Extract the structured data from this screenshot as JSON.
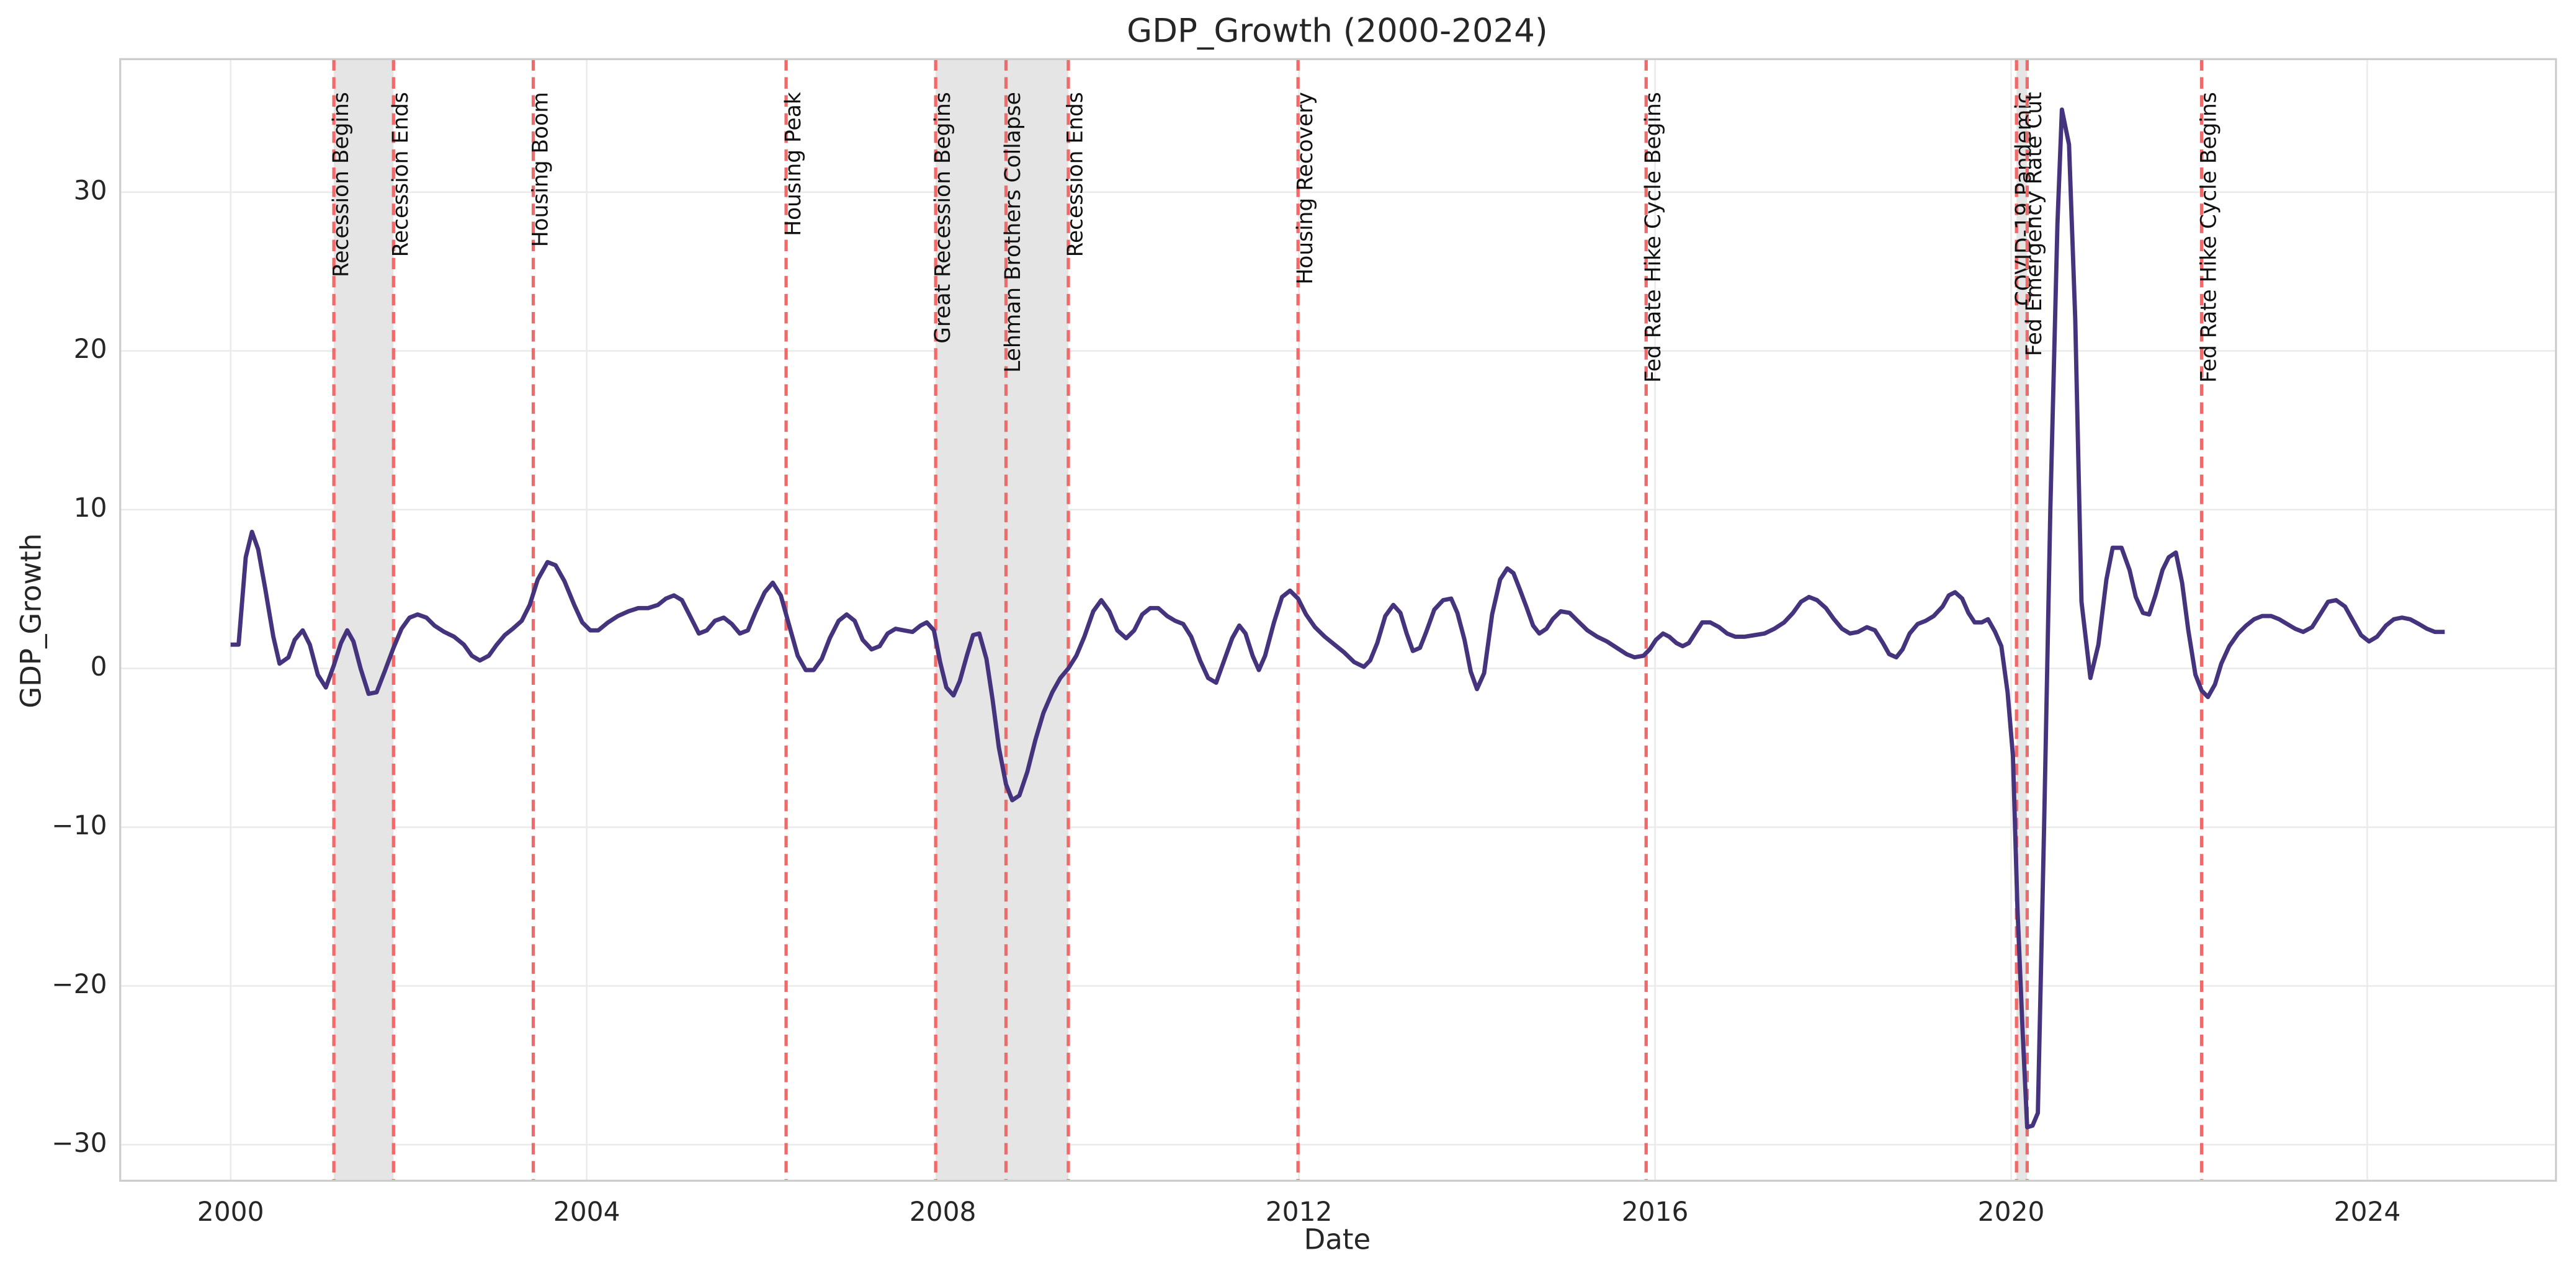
{
  "chart_data": {
    "type": "line",
    "title": "GDP_Growth (2000-2024)",
    "xlabel": "Date",
    "ylabel": "GDP_Growth",
    "xlim": [
      1998.76,
      2026.12
    ],
    "ylim": [
      -32.27,
      38.38
    ],
    "xticks": [
      2000,
      2004,
      2008,
      2012,
      2016,
      2020,
      2024
    ],
    "yticks": [
      {
        "value": -30,
        "label": "−30"
      },
      {
        "value": -20,
        "label": "−20"
      },
      {
        "value": -10,
        "label": "−10"
      },
      0,
      10,
      20,
      30
    ],
    "grid": true,
    "x": [
      2000.0,
      2000.09,
      2000.17,
      2000.24,
      2000.31,
      2000.39,
      2000.48,
      2000.55,
      2000.65,
      2000.72,
      2000.81,
      2000.89,
      2000.98,
      2001.07,
      2001.16,
      2001.24,
      2001.31,
      2001.38,
      2001.46,
      2001.55,
      2001.64,
      2001.73,
      2001.83,
      2001.92,
      2002.01,
      2002.1,
      2002.2,
      2002.29,
      2002.4,
      2002.51,
      2002.62,
      2002.71,
      2002.8,
      2002.9,
      2002.99,
      2003.08,
      2003.17,
      2003.27,
      2003.36,
      2003.45,
      2003.56,
      2003.65,
      2003.75,
      2003.86,
      2003.95,
      2004.04,
      2004.13,
      2004.24,
      2004.35,
      2004.47,
      2004.58,
      2004.69,
      2004.8,
      2004.89,
      2004.98,
      2005.07,
      2005.17,
      2005.26,
      2005.35,
      2005.44,
      2005.54,
      2005.63,
      2005.72,
      2005.81,
      2005.9,
      2006.0,
      2006.09,
      2006.18,
      2006.27,
      2006.37,
      2006.46,
      2006.55,
      2006.64,
      2006.73,
      2006.83,
      2006.92,
      2007.01,
      2007.1,
      2007.2,
      2007.29,
      2007.38,
      2007.47,
      2007.56,
      2007.66,
      2007.75,
      2007.82,
      2007.9,
      2007.97,
      2008.04,
      2008.12,
      2008.19,
      2008.27,
      2008.34,
      2008.41,
      2008.49,
      2008.56,
      2008.63,
      2008.71,
      2008.78,
      2008.86,
      2008.95,
      2009.04,
      2009.13,
      2009.23,
      2009.32,
      2009.41,
      2009.5,
      2009.59,
      2009.69,
      2009.78,
      2009.87,
      2009.96,
      2010.06,
      2010.15,
      2010.24,
      2010.33,
      2010.42,
      2010.52,
      2010.61,
      2010.7,
      2010.79,
      2010.89,
      2010.98,
      2011.07,
      2011.16,
      2011.25,
      2011.33,
      2011.4,
      2011.48,
      2011.55,
      2011.62,
      2011.72,
      2011.81,
      2011.9,
      2011.99,
      2012.08,
      2012.18,
      2012.29,
      2012.4,
      2012.51,
      2012.62,
      2012.73,
      2012.8,
      2012.88,
      2012.97,
      2013.06,
      2013.14,
      2013.21,
      2013.28,
      2013.36,
      2013.43,
      2013.52,
      2013.62,
      2013.71,
      2013.78,
      2013.86,
      2013.93,
      2014.0,
      2014.08,
      2014.17,
      2014.26,
      2014.34,
      2014.41,
      2014.48,
      2014.56,
      2014.63,
      2014.7,
      2014.78,
      2014.85,
      2014.94,
      2015.04,
      2015.13,
      2015.24,
      2015.35,
      2015.46,
      2015.57,
      2015.68,
      2015.77,
      2015.87,
      2015.94,
      2016.01,
      2016.09,
      2016.16,
      2016.24,
      2016.31,
      2016.38,
      2016.46,
      2016.53,
      2016.62,
      2016.72,
      2016.81,
      2016.9,
      2017.01,
      2017.12,
      2017.23,
      2017.34,
      2017.45,
      2017.55,
      2017.64,
      2017.73,
      2017.82,
      2017.92,
      2018.01,
      2018.1,
      2018.19,
      2018.28,
      2018.38,
      2018.47,
      2018.56,
      2018.63,
      2018.71,
      2018.78,
      2018.86,
      2018.95,
      2019.04,
      2019.13,
      2019.23,
      2019.3,
      2019.37,
      2019.45,
      2019.52,
      2019.59,
      2019.67,
      2019.74,
      2019.82,
      2019.89,
      2019.96,
      2020.02,
      2020.07,
      2020.13,
      2020.18,
      2020.24,
      2020.3,
      2020.37,
      2020.44,
      2020.52,
      2020.57,
      2020.65,
      2020.72,
      2020.79,
      2020.89,
      2020.98,
      2021.07,
      2021.14,
      2021.24,
      2021.33,
      2021.4,
      2021.48,
      2021.55,
      2021.62,
      2021.7,
      2021.77,
      2021.85,
      2021.92,
      2021.99,
      2022.07,
      2022.14,
      2022.21,
      2022.29,
      2022.36,
      2022.45,
      2022.55,
      2022.64,
      2022.73,
      2022.82,
      2022.92,
      2023.01,
      2023.1,
      2023.19,
      2023.28,
      2023.38,
      2023.47,
      2023.56,
      2023.65,
      2023.75,
      2023.84,
      2023.93,
      2024.02,
      2024.11,
      2024.21,
      2024.3,
      2024.39,
      2024.48,
      2024.58,
      2024.67,
      2024.76,
      2024.87
    ],
    "series": [
      {
        "color": "#46337e",
        "values": [
          1.5,
          1.5,
          7,
          8.6,
          7.5,
          5,
          2,
          0.3,
          0.7,
          1.8,
          2.4,
          1.5,
          -0.4,
          -1.2,
          0.2,
          1.6,
          2.4,
          1.7,
          0,
          -1.6,
          -1.5,
          -0.2,
          1.3,
          2.5,
          3.2,
          3.4,
          3.2,
          2.7,
          2.3,
          2.0,
          1.5,
          0.8,
          0.5,
          0.8,
          1.5,
          2.1,
          2.5,
          3.0,
          4.0,
          5.6,
          6.7,
          6.5,
          5.5,
          4.0,
          2.9,
          2.4,
          2.4,
          2.9,
          3.3,
          3.6,
          3.8,
          3.8,
          4.0,
          4.4,
          4.6,
          4.3,
          3.2,
          2.2,
          2.4,
          3.0,
          3.2,
          2.8,
          2.2,
          2.4,
          3.6,
          4.8,
          5.4,
          4.6,
          2.8,
          0.8,
          -0.1,
          -0.1,
          0.6,
          1.9,
          3.0,
          3.4,
          3.0,
          1.8,
          1.2,
          1.4,
          2.2,
          2.5,
          2.4,
          2.3,
          2.7,
          2.9,
          2.4,
          0.4,
          -1.2,
          -1.7,
          -0.8,
          0.8,
          2.1,
          2.2,
          0.6,
          -2,
          -5,
          -7.3,
          -8.3,
          -8,
          -6.5,
          -4.5,
          -2.8,
          -1.5,
          -0.6,
          0,
          0.8,
          2.0,
          3.6,
          4.3,
          3.6,
          2.4,
          1.9,
          2.4,
          3.4,
          3.8,
          3.8,
          3.3,
          3.0,
          2.8,
          2.0,
          0.5,
          -0.6,
          -0.9,
          0.5,
          1.9,
          2.7,
          2.2,
          0.8,
          -0.1,
          0.8,
          2.9,
          4.5,
          4.9,
          4.4,
          3.4,
          2.6,
          2.0,
          1.5,
          1.0,
          0.4,
          0.1,
          0.5,
          1.6,
          3.3,
          4.0,
          3.5,
          2.2,
          1.1,
          1.3,
          2.3,
          3.7,
          4.3,
          4.4,
          3.5,
          1.8,
          -0.2,
          -1.3,
          -0.3,
          3.4,
          5.6,
          6.3,
          6.0,
          5.0,
          3.8,
          2.7,
          2.2,
          2.5,
          3.1,
          3.6,
          3.5,
          3.0,
          2.4,
          2.0,
          1.7,
          1.3,
          0.9,
          0.7,
          0.8,
          1.2,
          1.8,
          2.2,
          2.0,
          1.6,
          1.4,
          1.6,
          2.3,
          2.9,
          2.9,
          2.6,
          2.2,
          2.0,
          2.0,
          2.1,
          2.2,
          2.5,
          2.9,
          3.5,
          4.2,
          4.5,
          4.3,
          3.8,
          3.1,
          2.5,
          2.2,
          2.3,
          2.6,
          2.4,
          1.6,
          0.9,
          0.7,
          1.2,
          2.2,
          2.8,
          3.0,
          3.3,
          3.9,
          4.6,
          4.8,
          4.4,
          3.5,
          2.9,
          2.9,
          3.1,
          2.3,
          1.4,
          -1.5,
          -5.5,
          -15,
          -23,
          -28.9,
          -28.8,
          -28,
          -10,
          10,
          28,
          35.2,
          33,
          22,
          4.2,
          -0.6,
          1.5,
          5.6,
          7.6,
          7.6,
          6.2,
          4.5,
          3.5,
          3.4,
          4.6,
          6.2,
          7.0,
          7.3,
          5.4,
          2.4,
          -0.4,
          -1.4,
          -1.8,
          -1.0,
          0.3,
          1.4,
          2.2,
          2.7,
          3.1,
          3.3,
          3.3,
          3.1,
          2.8,
          2.5,
          2.3,
          2.6,
          3.4,
          4.2,
          4.3,
          3.9,
          3.0,
          2.1,
          1.7,
          2.0,
          2.7,
          3.1,
          3.2,
          3.1,
          2.8,
          2.5,
          2.3,
          2.3
        ]
      }
    ],
    "spans": [
      [
        2001.16,
        2001.83
      ],
      [
        2007.92,
        2009.41
      ],
      [
        2020.06,
        2020.18
      ]
    ],
    "span_color": "#e5e5e5",
    "event_color": "#f06a6a",
    "events": [
      {
        "x": 2001.16,
        "label": "Recession Begins"
      },
      {
        "x": 2001.83,
        "label": "Recession Ends"
      },
      {
        "x": 2003.4,
        "label": "Housing Boom"
      },
      {
        "x": 2006.24,
        "label": "Housing Peak"
      },
      {
        "x": 2007.92,
        "label": "Great Recession Begins"
      },
      {
        "x": 2008.71,
        "label": "Lehman Brothers Collapse"
      },
      {
        "x": 2009.41,
        "label": "Recession Ends"
      },
      {
        "x": 2011.99,
        "label": "Housing Recovery"
      },
      {
        "x": 2015.9,
        "label": "Fed Rate Hike Cycle Begins"
      },
      {
        "x": 2020.06,
        "label": "COVID-19 Pandemic"
      },
      {
        "x": 2020.18,
        "label": "Fed Emergency Rate Cut"
      },
      {
        "x": 2022.14,
        "label": "Fed Rate Hike Cycle Begins"
      }
    ]
  }
}
